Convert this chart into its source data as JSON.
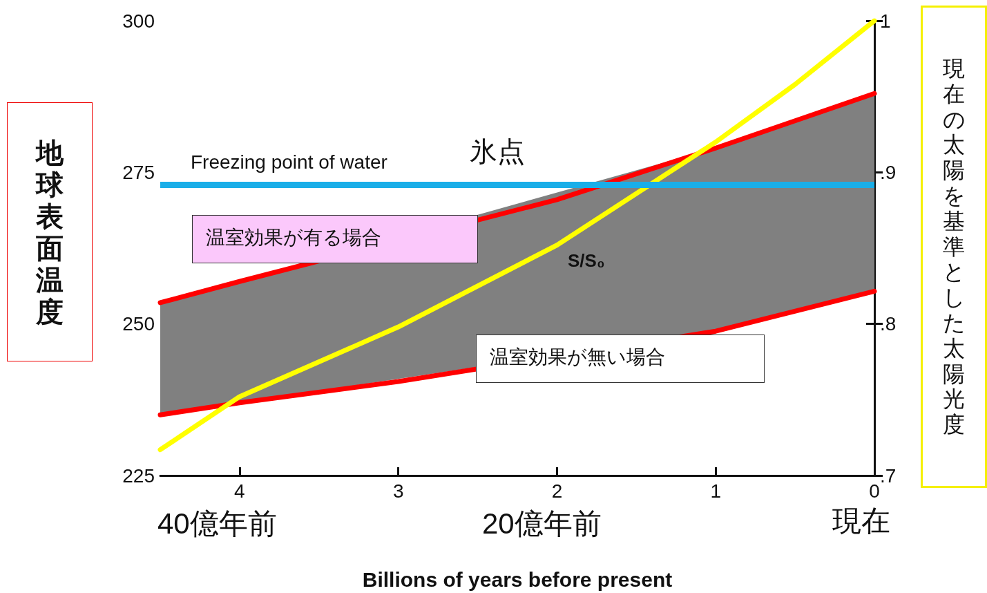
{
  "chart_data": {
    "type": "line",
    "xlabel": "Billions of years before present",
    "ylabel": "地球表面温度",
    "y2label": "現在の太陽を基準とした太陽光度",
    "xlim": [
      4.5,
      0
    ],
    "xticks": [
      4,
      3,
      2,
      1,
      0
    ],
    "ylim": [
      225,
      300
    ],
    "yticks": [
      225,
      250,
      275,
      300
    ],
    "y2lim": [
      0.7,
      1
    ],
    "y2ticks": [
      {
        "value": 0.7,
        "label": ".7"
      },
      {
        "value": 0.8,
        "label": ".8"
      },
      {
        "value": 0.9,
        "label": ".9"
      },
      {
        "value": 1,
        "label": "1"
      }
    ],
    "grid": false,
    "marker": "none",
    "line_style": "solid",
    "series": [
      {
        "color": "#ff0000",
        "x": [
          4.5,
          4,
          3,
          2,
          1,
          0
        ],
        "values": [
          253.5,
          257,
          null,
          270.5,
          279,
          288
        ],
        "lower": [
          235,
          237,
          null,
          null,
          248.8,
          255.4
        ],
        "upper": [
          253.5,
          257,
          null,
          null,
          279,
          288
        ]
      },
      {
        "color": "#ff0000",
        "x": [
          4.5,
          4,
          3,
          2,
          1,
          0
        ],
        "values": [
          235,
          237,
          240.5,
          null,
          248.8,
          255.4
        ]
      },
      {
        "color": "#ffff00",
        "axis": "y2",
        "x": [
          4.5,
          4,
          3,
          2,
          1,
          0.5,
          0
        ],
        "values": [
          0.717,
          0.752,
          0.798,
          0.852,
          0.92,
          0.958,
          1.0
        ]
      }
    ],
    "ref_lines": [
      {
        "axis": "y",
        "value": 273,
        "label": "Freezing point of water",
        "color": "#1aaee8"
      }
    ],
    "annotations": [
      "氷点",
      "温室効果が有る場合",
      "S/S₀",
      "温室効果が無い場合",
      "40億年前",
      "20億年前",
      "現在"
    ]
  }
}
